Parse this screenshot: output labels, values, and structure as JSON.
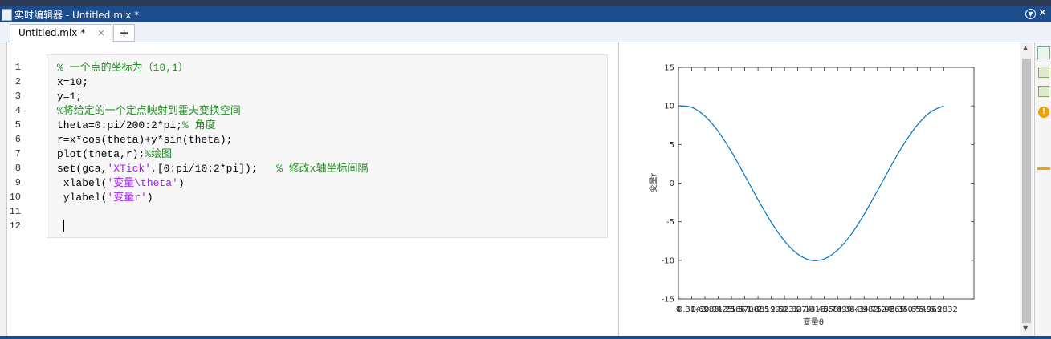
{
  "window": {
    "title": "实时编辑器 - Untitled.mlx *"
  },
  "tabs": {
    "active": "Untitled.mlx *",
    "close": "×",
    "add": "+"
  },
  "editor": {
    "line_numbers": [
      1,
      2,
      3,
      4,
      5,
      6,
      7,
      8,
      9,
      10,
      11,
      12
    ],
    "lines": [
      [
        {
          "text": "% 一个点的坐标为（10,1）",
          "kind": "comment"
        }
      ],
      [
        {
          "text": "x=10;",
          "kind": "code"
        }
      ],
      [
        {
          "text": "y=1;",
          "kind": "code"
        }
      ],
      [
        {
          "text": "%将给定的一个定点映射到霍夫变换空间",
          "kind": "comment"
        }
      ],
      [
        {
          "text": "theta=0:pi/200:2*pi;",
          "kind": "code"
        },
        {
          "text": "% 角度",
          "kind": "comment"
        }
      ],
      [
        {
          "text": "r=x*cos(theta)+y*sin(theta);",
          "kind": "code"
        }
      ],
      [
        {
          "text": "plot(theta,r);",
          "kind": "code"
        },
        {
          "text": "%绘图",
          "kind": "comment"
        }
      ],
      [
        {
          "text": "set(gca,",
          "kind": "code"
        },
        {
          "text": "'XTick'",
          "kind": "string"
        },
        {
          "text": ",[0:pi/10:2*pi]);   ",
          "kind": "code"
        },
        {
          "text": "% 修改x轴坐标间隔",
          "kind": "comment"
        }
      ],
      [
        {
          "text": " xlabel(",
          "kind": "code"
        },
        {
          "text": "'变量\\theta'",
          "kind": "string"
        },
        {
          "text": ")",
          "kind": "code"
        }
      ],
      [
        {
          "text": " ylabel(",
          "kind": "code"
        },
        {
          "text": "'变量r'",
          "kind": "string"
        },
        {
          "text": ")",
          "kind": "code"
        }
      ]
    ],
    "colors": {
      "code": "#000000",
      "comment": "#228b22",
      "string": "#a020f0"
    }
  },
  "chart_data": {
    "type": "line",
    "xlabel": "变量θ",
    "ylabel": "变量r",
    "x": [
      0,
      0.3142,
      0.6283,
      0.9425,
      1.2566,
      1.5708,
      1.885,
      2.1991,
      2.5133,
      2.8274,
      3.1416,
      3.4558,
      3.7699,
      4.0841,
      4.3982,
      4.7124,
      5.0265,
      5.3407,
      5.6549,
      5.969,
      6.2832
    ],
    "series": [
      {
        "color": "#0072bd",
        "values": [
          10,
          9.82,
          8.68,
          6.69,
          4.04,
          1.0,
          -2.14,
          -5.07,
          -7.5,
          -9.2,
          -10,
          -9.82,
          -8.68,
          -6.69,
          -4.04,
          -1.0,
          2.14,
          5.07,
          7.5,
          9.2,
          10
        ]
      }
    ],
    "xlim": [
      0,
      7
    ],
    "xticks": [
      0,
      0.3142,
      0.6283,
      0.9425,
      1.2566,
      1.5708,
      1.885,
      2.1991,
      2.5133,
      2.8274,
      3.1416,
      3.4558,
      3.7699,
      4.0841,
      4.3982,
      4.7124,
      5.0265,
      5.3407,
      5.6549,
      5.969,
      6.2832
    ],
    "ylim": [
      -15,
      15
    ],
    "yticks": [
      -15,
      -10,
      -5,
      0,
      5,
      10,
      15
    ]
  }
}
